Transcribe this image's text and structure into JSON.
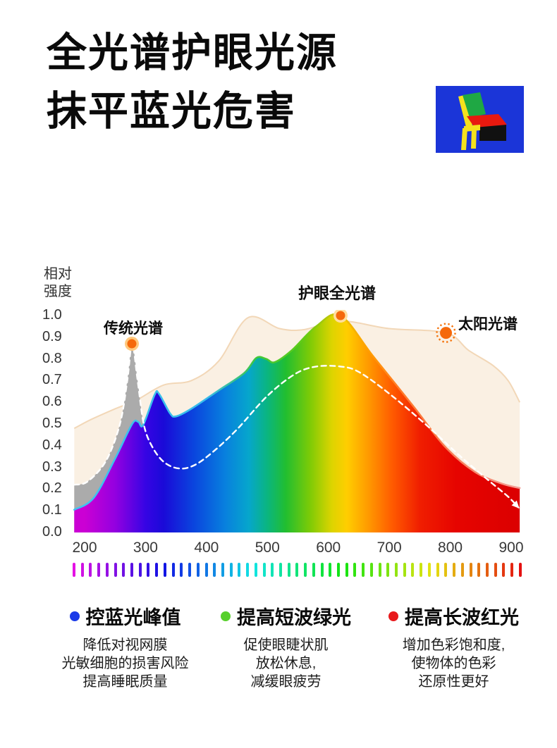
{
  "header": {
    "title_line1": "全光谱护眼光源",
    "title_line2": "抹平蓝光危害"
  },
  "logo": {
    "bg": "#1B35D8",
    "frame": "#F4E11D",
    "back": "#1FA844",
    "seat": "#E8190F",
    "side": "#111111"
  },
  "chart": {
    "y_axis_title_line1": "相对",
    "y_axis_title_line2": "强度",
    "y_ticks": [
      "1.0",
      "0.9",
      "0.8",
      "0.7",
      "0.6",
      "0.5",
      "0.4",
      "0.3",
      "0.2",
      "0.1",
      "0.0"
    ],
    "x_ticks": [
      "200",
      "300",
      "400",
      "500",
      "600",
      "700",
      "800",
      "900"
    ],
    "annotations": {
      "traditional": "传统光谱",
      "full": "护眼全光谱",
      "solar": "太阳光谱"
    }
  },
  "chart_data": {
    "type": "area",
    "title": "",
    "ylabel": "相对强度",
    "xlim": [
      200,
      900
    ],
    "ylim": [
      0.0,
      1.0
    ],
    "grid": false,
    "x_unit": "nm (wavelength, unlabeled on chart)",
    "series": [
      {
        "name": "太阳光谱",
        "style": "solar-beige-area",
        "fill": "#FAF0E3",
        "stroke": "#F2D7B7",
        "points": [
          [
            183,
            0.48
          ],
          [
            210,
            0.52
          ],
          [
            250,
            0.57
          ],
          [
            285,
            0.61
          ],
          [
            330,
            0.68
          ],
          [
            375,
            0.7
          ],
          [
            420,
            0.79
          ],
          [
            468,
            0.99
          ],
          [
            520,
            0.94
          ],
          [
            560,
            0.935
          ],
          [
            620,
            0.975
          ],
          [
            700,
            0.94
          ],
          [
            793,
            0.92
          ],
          [
            830,
            0.84
          ],
          [
            870,
            0.77
          ],
          [
            895,
            0.7
          ],
          [
            914,
            0.6
          ]
        ]
      },
      {
        "name": "护眼全光谱",
        "style": "rainbow-area",
        "fill": "spectrum-gradient",
        "points": [
          [
            183,
            0.105
          ],
          [
            215,
            0.16
          ],
          [
            250,
            0.34
          ],
          [
            278,
            0.5
          ],
          [
            288,
            0.51
          ],
          [
            296,
            0.495
          ],
          [
            315,
            0.635
          ],
          [
            322,
            0.64
          ],
          [
            340,
            0.55
          ],
          [
            350,
            0.535
          ],
          [
            375,
            0.57
          ],
          [
            420,
            0.655
          ],
          [
            462,
            0.735
          ],
          [
            482,
            0.805
          ],
          [
            498,
            0.8
          ],
          [
            512,
            0.785
          ],
          [
            540,
            0.84
          ],
          [
            580,
            0.95
          ],
          [
            620,
            1.0
          ],
          [
            674,
            0.81
          ],
          [
            740,
            0.58
          ],
          [
            790,
            0.4
          ],
          [
            840,
            0.28
          ],
          [
            885,
            0.225
          ],
          [
            914,
            0.205
          ]
        ]
      },
      {
        "name": "传统光谱",
        "style": "gray-area-white-dashed",
        "fill": "#ABABAB",
        "stroke": "#FFFFFF",
        "points": [
          [
            183,
            0.22
          ],
          [
            205,
            0.235
          ],
          [
            235,
            0.33
          ],
          [
            258,
            0.5
          ],
          [
            270,
            0.7
          ],
          [
            278,
            0.87
          ],
          [
            287,
            0.7
          ],
          [
            297,
            0.5
          ],
          [
            310,
            0.4
          ],
          [
            330,
            0.325
          ],
          [
            355,
            0.295
          ],
          [
            380,
            0.31
          ],
          [
            410,
            0.37
          ],
          [
            450,
            0.475
          ],
          [
            500,
            0.63
          ],
          [
            545,
            0.73
          ],
          [
            580,
            0.765
          ],
          [
            620,
            0.765
          ],
          [
            650,
            0.74
          ],
          [
            700,
            0.64
          ],
          [
            763,
            0.49
          ],
          [
            817,
            0.35
          ],
          [
            863,
            0.24
          ],
          [
            895,
            0.165
          ],
          [
            912,
            0.115
          ]
        ]
      }
    ],
    "markers": [
      {
        "label": "传统光谱",
        "nm": 277.5,
        "value": 0.87,
        "icon": "dot",
        "core": "#F5690B",
        "ring": "#FFC97E"
      },
      {
        "label": "护眼全光谱",
        "nm": 620,
        "value": 1.0,
        "icon": "dot",
        "core": "#F5690B",
        "ring": "#FFDF9E"
      },
      {
        "label": "太阳光谱",
        "nm": 793,
        "value": 0.92,
        "icon": "sun",
        "core": "#F5690B",
        "ring": "#F5730B"
      }
    ],
    "spectrum_bar": {
      "stripes": 55,
      "hue_start": 300,
      "hue_end": 0
    }
  },
  "legend": {
    "items": [
      {
        "dot_color": "#1A3AE8",
        "title": "控蓝光峰值",
        "line1": "降低对视网膜",
        "line2": "光敏细胞的损害风险",
        "line3": "提高睡眠质量"
      },
      {
        "dot_color": "#57D02C",
        "title": "提高短波绿光",
        "line1": "促使眼睫状肌",
        "line2": "放松休息,",
        "line3": "减缓眼疲劳"
      },
      {
        "dot_color": "#E8191C",
        "title": "提高长波红光",
        "line1": "增加色彩饱和度,",
        "line2": "使物体的色彩",
        "line3": "还原性更好"
      }
    ]
  }
}
